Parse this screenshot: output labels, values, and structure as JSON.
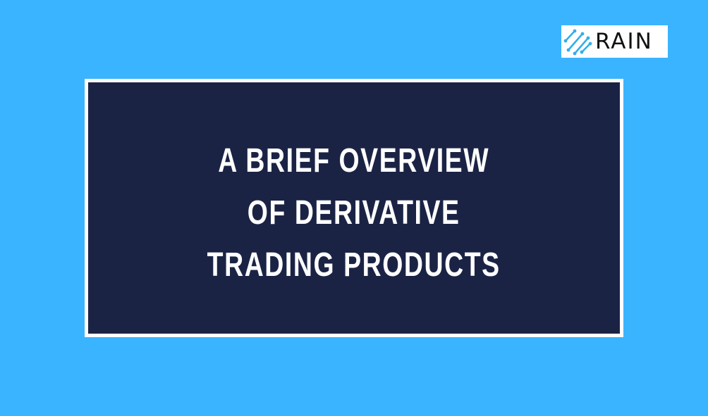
{
  "brand": {
    "name": "RAIN",
    "logo_icon": "rain-diagonal-lines-icon",
    "colors": {
      "background": "#3bb4ff",
      "card": "#1b2345",
      "card_border": "#ffffff",
      "logo_accent": "#34aee9",
      "text": "#ffffff"
    }
  },
  "headline": {
    "lines": [
      "A BRIEF OVERVIEW",
      "OF DERIVATIVE",
      "TRADING PRODUCTS"
    ]
  }
}
